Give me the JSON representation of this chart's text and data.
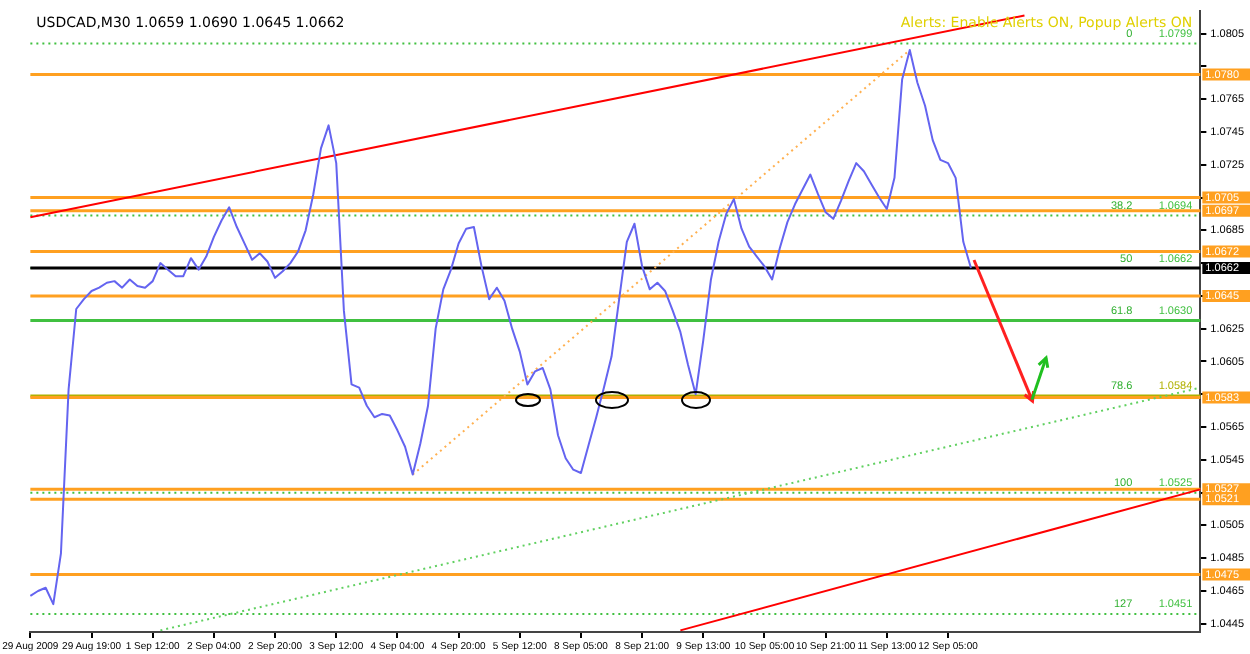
{
  "chart_data": {
    "type": "line",
    "title": "USDCAD,M30 1.0659 1.0690 1.0645 1.0662",
    "annotations": [
      "Alerts: Enable Alerts ON, Popup Alerts ON",
      {
        "text": "0",
        "y": 1.0799
      },
      {
        "text": "38.2",
        "y": 1.0694
      },
      {
        "text": "50",
        "y": 1.0662
      },
      {
        "text": "61.8",
        "y": 1.063
      },
      {
        "text": "78.6",
        "y": 1.0584
      },
      {
        "text": "100",
        "y": 1.0525
      },
      {
        "text": "127",
        "y": 1.0451
      }
    ],
    "categories": [
      "29 Aug 2009",
      null,
      null,
      null,
      null,
      null,
      null,
      null,
      "29 Aug 19:00",
      null,
      null,
      null,
      null,
      null,
      null,
      null,
      "1 Sep 12:00",
      null,
      null,
      null,
      null,
      null,
      null,
      null,
      "2 Sep 04:00",
      null,
      null,
      null,
      null,
      null,
      null,
      null,
      "2 Sep 20:00",
      null,
      null,
      null,
      null,
      null,
      null,
      null,
      "3 Sep 12:00",
      null,
      null,
      null,
      null,
      null,
      null,
      null,
      "4 Sep 04:00",
      null,
      null,
      null,
      null,
      null,
      null,
      null,
      "4 Sep 20:00",
      null,
      null,
      null,
      null,
      null,
      null,
      null,
      "5 Sep 12:00",
      null,
      null,
      null,
      null,
      null,
      null,
      null,
      "8 Sep 05:00",
      null,
      null,
      null,
      null,
      null,
      null,
      null,
      "8 Sep 21:00",
      null,
      null,
      null,
      null,
      null,
      null,
      null,
      "9 Sep 13:00",
      null,
      null,
      null,
      null,
      null,
      null,
      null,
      "10 Sep 05:00",
      null,
      null,
      null,
      null,
      null,
      null,
      null,
      "10 Sep 21:00",
      null,
      null,
      null,
      null,
      null,
      null,
      null,
      "11 Sep 13:00",
      null,
      null,
      null,
      null,
      null,
      null,
      null,
      "12 Sep 05:00",
      null,
      null,
      null,
      null,
      null,
      null,
      null,
      null,
      null,
      null,
      null,
      null,
      null,
      null,
      null,
      null,
      null,
      null,
      null,
      null,
      null,
      null,
      null,
      null,
      null,
      null,
      null,
      null,
      null,
      null,
      null,
      null,
      null
    ],
    "series": [
      {
        "color": "#6464f0",
        "values": [
          1.0462,
          1.0465,
          1.0467,
          1.0457,
          1.0488,
          1.0588,
          1.0637,
          1.0643,
          1.0648,
          1.065,
          1.0653,
          1.0654,
          1.065,
          1.0655,
          1.0651,
          1.065,
          1.0654,
          1.0665,
          1.0661,
          1.0657,
          1.0657,
          1.0668,
          1.0661,
          1.0669,
          1.0681,
          1.0691,
          1.0699,
          1.0687,
          1.0677,
          1.0667,
          1.0671,
          1.0666,
          1.0656,
          1.066,
          1.0665,
          1.0672,
          1.0685,
          1.0707,
          1.0735,
          1.0749,
          1.0726,
          1.0636,
          1.0591,
          1.0589,
          1.0578,
          1.0571,
          1.0573,
          1.0572,
          1.0563,
          1.0553,
          1.0536,
          1.0555,
          1.0578,
          1.0625,
          1.0649,
          1.0661,
          1.0677,
          1.0686,
          1.0687,
          1.0663,
          1.0643,
          1.065,
          1.0642,
          1.0625,
          1.0611,
          1.0591,
          1.0599,
          1.0601,
          1.0588,
          1.056,
          1.0546,
          1.0539,
          1.0537,
          1.0554,
          1.0571,
          1.0589,
          1.0608,
          1.0643,
          1.0678,
          1.0689,
          1.0663,
          1.0649,
          1.0653,
          1.0648,
          1.0636,
          1.0623,
          1.0603,
          1.0585,
          1.0618,
          1.0655,
          1.0678,
          1.0695,
          1.0704,
          1.0686,
          1.0675,
          1.0669,
          1.0663,
          1.0655,
          1.0674,
          1.069,
          1.0701,
          1.071,
          1.0719,
          1.0707,
          1.0696,
          1.0692,
          1.0703,
          1.0715,
          1.0726,
          1.0721,
          1.0713,
          1.0705,
          1.0698,
          1.0717,
          1.0777,
          1.0795,
          1.0775,
          1.0761,
          1.074,
          1.0728,
          1.0726,
          1.0717,
          1.0678,
          1.0662,
          null,
          null,
          null,
          null,
          null,
          null,
          null,
          null,
          null,
          null,
          null,
          null,
          null,
          null,
          null,
          null,
          null,
          null,
          null,
          null,
          null,
          null,
          null,
          null,
          null,
          null,
          null,
          null,
          null,
          null
        ]
      },
      {
        "type": "line",
        "color": "#ff0000",
        "line_style": "solid",
        "values": [
          1.0693,
          null,
          null,
          null,
          null,
          null,
          null,
          null,
          null,
          null,
          null,
          null,
          null,
          null,
          null,
          null,
          null,
          null,
          null,
          null,
          null,
          null,
          null,
          null,
          null,
          null,
          null,
          null,
          null,
          null,
          null,
          null,
          null,
          null,
          null,
          null,
          null,
          null,
          null,
          null,
          null,
          null,
          null,
          null,
          null,
          null,
          null,
          null,
          null,
          null,
          null,
          null,
          null,
          null,
          null,
          null,
          null,
          null,
          null,
          null,
          null,
          null,
          null,
          null,
          null,
          null,
          null,
          null,
          null,
          null,
          null,
          null,
          null,
          null,
          null,
          null,
          null,
          null,
          null,
          null,
          null,
          null,
          null,
          null,
          null,
          null,
          null,
          null,
          null,
          null,
          null,
          null,
          null,
          null,
          null,
          null,
          null,
          null,
          null,
          null,
          null,
          null,
          null,
          null,
          null,
          null,
          null,
          null,
          null,
          null,
          null,
          null,
          null,
          null,
          null,
          null,
          null,
          null,
          null,
          null,
          null,
          null,
          null,
          null,
          null,
          null,
          null,
          null,
          null,
          null,
          1.0816,
          null,
          null,
          null,
          null,
          null,
          null,
          null,
          null,
          null,
          null,
          null,
          null,
          null,
          null,
          null,
          null,
          null,
          null,
          null,
          null,
          null,
          null,
          null
        ]
      },
      {
        "type": "line",
        "color": "#ff0000",
        "line_style": "solid",
        "values": [
          null,
          null,
          null,
          null,
          null,
          null,
          null,
          null,
          null,
          null,
          null,
          null,
          null,
          null,
          null,
          null,
          null,
          null,
          null,
          null,
          null,
          null,
          null,
          null,
          null,
          null,
          null,
          null,
          null,
          null,
          null,
          null,
          null,
          null,
          null,
          null,
          null,
          null,
          null,
          null,
          null,
          null,
          null,
          null,
          null,
          null,
          null,
          null,
          null,
          null,
          null,
          null,
          null,
          null,
          null,
          null,
          null,
          null,
          null,
          null,
          null,
          null,
          null,
          null,
          null,
          null,
          null,
          null,
          null,
          null,
          null,
          null,
          null,
          null,
          null,
          null,
          null,
          null,
          null,
          null,
          null,
          null,
          null,
          null,
          null,
          1.0441,
          null,
          null,
          null,
          null,
          null,
          null,
          null,
          null,
          null,
          null,
          null,
          null,
          null,
          null,
          null,
          null,
          null,
          null,
          null,
          null,
          null,
          null,
          null,
          null,
          null,
          null,
          null,
          null,
          null,
          null,
          null,
          null,
          null,
          null,
          null,
          null,
          null,
          null,
          null,
          null,
          null,
          null,
          null,
          null,
          null,
          null,
          null,
          null,
          null,
          null,
          null,
          null,
          null,
          null,
          null,
          null,
          null,
          null,
          null,
          null,
          null,
          null,
          null,
          null,
          null,
          null,
          null,
          1.0527
        ]
      },
      {
        "type": "line",
        "color": "#ffb050",
        "line_style": "dotted",
        "values": [
          null,
          null,
          null,
          null,
          null,
          null,
          null,
          null,
          null,
          null,
          null,
          null,
          null,
          null,
          null,
          null,
          null,
          null,
          null,
          null,
          null,
          null,
          null,
          null,
          null,
          null,
          null,
          null,
          null,
          null,
          null,
          null,
          null,
          null,
          null,
          null,
          null,
          null,
          null,
          null,
          null,
          null,
          null,
          null,
          null,
          null,
          null,
          null,
          null,
          null,
          1.0536,
          null,
          null,
          null,
          null,
          null,
          null,
          null,
          null,
          null,
          null,
          null,
          null,
          null,
          null,
          null,
          null,
          null,
          null,
          null,
          null,
          null,
          null,
          null,
          null,
          null,
          null,
          null,
          null,
          null,
          null,
          null,
          null,
          null,
          null,
          null,
          null,
          null,
          null,
          null,
          null,
          null,
          null,
          null,
          null,
          null,
          null,
          null,
          null,
          null,
          null,
          null,
          null,
          null,
          null,
          null,
          null,
          null,
          null,
          null,
          null,
          null,
          null,
          null,
          null,
          1.0795,
          null,
          null,
          null,
          null,
          null,
          null,
          null,
          null,
          null,
          null,
          null,
          null,
          null,
          null,
          null,
          null,
          null,
          null,
          null,
          null,
          null,
          null,
          null,
          null,
          null,
          null,
          null,
          null,
          null,
          null,
          null,
          null,
          null,
          null,
          null,
          null,
          null,
          null
        ]
      },
      {
        "type": "line",
        "color": "#60d060",
        "line_style": "dotted",
        "values": [
          null,
          null,
          null,
          null,
          null,
          null,
          null,
          null,
          null,
          null,
          null,
          null,
          null,
          null,
          null,
          null,
          null,
          1.0441,
          null,
          null,
          null,
          null,
          null,
          null,
          null,
          null,
          null,
          null,
          null,
          null,
          null,
          null,
          null,
          null,
          null,
          null,
          null,
          null,
          null,
          null,
          null,
          null,
          null,
          null,
          null,
          null,
          null,
          null,
          null,
          null,
          null,
          null,
          null,
          null,
          null,
          null,
          null,
          null,
          null,
          null,
          null,
          null,
          null,
          null,
          null,
          null,
          null,
          null,
          null,
          null,
          null,
          null,
          null,
          null,
          null,
          null,
          null,
          null,
          null,
          null,
          null,
          null,
          null,
          null,
          null,
          null,
          null,
          null,
          null,
          null,
          null,
          null,
          null,
          null,
          null,
          null,
          null,
          null,
          null,
          null,
          null,
          null,
          null,
          null,
          null,
          null,
          null,
          null,
          null,
          null,
          null,
          null,
          null,
          null,
          null,
          null,
          null,
          null,
          null,
          null,
          null,
          null,
          null,
          null,
          null,
          null,
          null,
          null,
          null,
          null,
          null,
          null,
          null,
          null,
          null,
          null,
          null,
          null,
          null,
          null,
          null,
          null,
          null,
          null,
          null,
          null,
          null,
          null,
          null,
          null,
          null,
          null,
          null,
          1.0589
        ]
      }
    ],
    "ylim": [
      1.044,
      1.0819
    ],
    "yticks": [
      1.0805,
      {
        "value": 1.0785,
        "label": null
      },
      1.0765,
      1.0745,
      1.0725,
      {
        "value": 1.0705,
        "label": null
      },
      1.0685,
      {
        "value": 1.0665,
        "label": null
      },
      {
        "value": 1.0645,
        "label": null
      },
      1.0625,
      1.0605,
      {
        "value": 1.0585,
        "label": null
      },
      1.0565,
      1.0545,
      {
        "value": 1.0525,
        "label": null
      },
      1.0505,
      1.0485,
      1.0465,
      1.0445
    ],
    "ref_lines": [
      {
        "axis": "y",
        "value": 1.0799,
        "label": "1.0799",
        "color": "#40c040",
        "line_style": "dotted"
      },
      {
        "axis": "y",
        "value": 1.0694,
        "label": "1.0694",
        "color": "#40c040",
        "line_style": "dotted"
      },
      {
        "axis": "y",
        "value": 1.0662,
        "label": "1.0662",
        "color": "#40c040",
        "line_style": "dotted"
      },
      {
        "axis": "y",
        "value": 1.063,
        "label": "1.0630",
        "color": "#40c040",
        "line_style": "solid"
      },
      {
        "axis": "y",
        "value": 1.0584,
        "label": "1.0584",
        "color": "#b0b000",
        "line_style": "solid"
      },
      {
        "axis": "y",
        "value": 1.0525,
        "label": "1.0525",
        "color": "#40c040",
        "line_style": "dotted"
      },
      {
        "axis": "y",
        "value": 1.0451,
        "label": "1.0451",
        "color": "#40c040",
        "line_style": "dotted"
      },
      {
        "axis": "y",
        "value": 1.078,
        "label": "1.0780",
        "color": "#ffa020",
        "line_style": "solid"
      },
      {
        "axis": "y",
        "value": 1.0705,
        "label": "1.0705",
        "color": "#ffa020",
        "line_style": "solid"
      },
      {
        "axis": "y",
        "value": 1.0697,
        "label": "1.0697",
        "color": "#ffa020",
        "line_style": "solid"
      },
      {
        "axis": "y",
        "value": 1.0672,
        "label": "1.0672",
        "color": "#ffa020",
        "line_style": "solid"
      },
      {
        "axis": "y",
        "value": 1.0645,
        "label": "1.0645",
        "color": "#ffa020",
        "line_style": "solid"
      },
      {
        "axis": "y",
        "value": 1.0583,
        "label": "1.0583",
        "color": "#ffa020",
        "line_style": "solid"
      },
      {
        "axis": "y",
        "value": 1.0527,
        "label": "1.0527",
        "color": "#ffa020",
        "line_style": "solid"
      },
      {
        "axis": "y",
        "value": 1.0521,
        "label": "1.0521",
        "color": "#ffa020",
        "line_style": "solid"
      },
      {
        "axis": "y",
        "value": 1.0475,
        "label": "1.0475",
        "color": "#ffa020",
        "line_style": "solid"
      },
      {
        "axis": "y",
        "value": 1.0662,
        "label": "1.0662",
        "color": "#000000",
        "line_style": "solid"
      }
    ],
    "grid": false,
    "legend": false,
    "marker": "none",
    "line_style": "solid"
  }
}
